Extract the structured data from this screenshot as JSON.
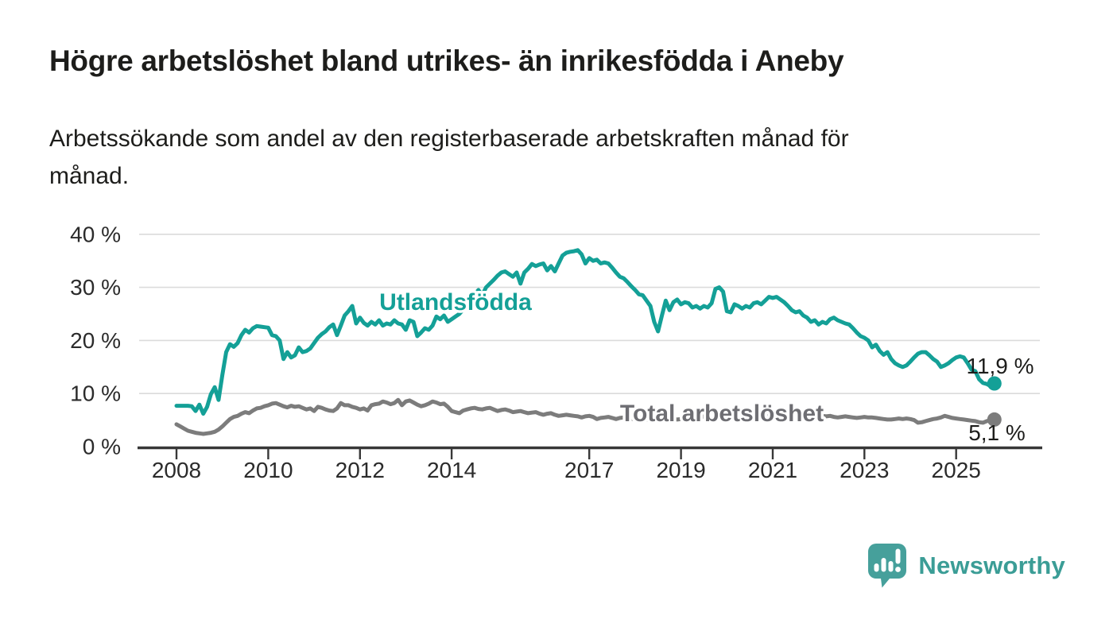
{
  "title": "Högre arbetslöshet bland utrikes- än inrikesfödda i Aneby",
  "subtitle": {
    "line1": "Arbetssökande som andel av den registerbaserade arbetskraften månad för",
    "line2": "månad."
  },
  "chart_data": {
    "type": "line",
    "x_unit": "month",
    "x_start": "2008-01",
    "x_end": "2025-11",
    "x_ticks": [
      2008,
      2010,
      2012,
      2014,
      2017,
      2019,
      2021,
      2023,
      2025
    ],
    "x_tick_labels": [
      "2008",
      "2010",
      "2012",
      "2014",
      "2017",
      "2019",
      "2021",
      "2023",
      "2025"
    ],
    "y_ticks": [
      0,
      10,
      20,
      30,
      40
    ],
    "y_tick_labels": [
      "0 %",
      "10 %",
      "20 %",
      "30 %",
      "40 %"
    ],
    "ylim": [
      0,
      42
    ],
    "grid": "horizontal",
    "legend_position": "inline-labels",
    "series": [
      {
        "name": "Utlandsfödda",
        "color": "#14a097",
        "label_color": "#14a097",
        "end_label": "11,9 %",
        "end_value": 11.9,
        "values": [
          7.7,
          7.7,
          7.7,
          7.7,
          7.6,
          6.7,
          7.9,
          6.2,
          7.5,
          9.9,
          11.2,
          8.8,
          13.5,
          17.8,
          19.3,
          18.8,
          19.5,
          21.0,
          22.0,
          21.5,
          22.3,
          22.7,
          22.6,
          22.5,
          22.4,
          21.0,
          20.8,
          20.0,
          16.5,
          17.8,
          16.8,
          17.2,
          18.7,
          17.8,
          18.0,
          18.5,
          19.5,
          20.5,
          21.2,
          21.7,
          22.5,
          23.0,
          21.0,
          22.8,
          24.7,
          25.5,
          26.5,
          23.2,
          24.3,
          23.3,
          22.8,
          23.5,
          23.0,
          23.8,
          22.8,
          23.2,
          23.0,
          23.8,
          23.2,
          23.0,
          22.0,
          23.8,
          23.5,
          20.8,
          21.5,
          22.3,
          22.0,
          22.8,
          24.5,
          24.0,
          24.7,
          23.5,
          24.0,
          24.5,
          25.0,
          25.8,
          26.5,
          27.6,
          28.7,
          29.5,
          28.5,
          30.0,
          30.7,
          31.4,
          32.2,
          32.8,
          33.0,
          32.5,
          32.0,
          32.8,
          30.7,
          32.8,
          33.5,
          34.4,
          34.0,
          34.3,
          34.5,
          33.2,
          34.0,
          33.0,
          34.5,
          36.0,
          36.5,
          36.7,
          36.8,
          37.0,
          36.2,
          34.5,
          35.5,
          35.0,
          35.2,
          34.5,
          34.7,
          34.5,
          33.7,
          32.8,
          32.0,
          31.7,
          31.0,
          30.2,
          29.5,
          28.7,
          28.5,
          27.5,
          26.5,
          23.5,
          21.7,
          24.7,
          27.5,
          25.7,
          27.2,
          27.7,
          26.8,
          27.2,
          27.0,
          26.2,
          26.5,
          26.0,
          26.5,
          26.2,
          27.0,
          29.7,
          30.0,
          29.2,
          25.5,
          25.3,
          26.8,
          26.5,
          26.0,
          26.5,
          26.2,
          27.0,
          27.2,
          26.8,
          27.5,
          28.2,
          28.0,
          28.2,
          27.7,
          27.2,
          26.5,
          25.7,
          25.3,
          25.5,
          24.7,
          24.3,
          23.5,
          23.8,
          23.0,
          23.5,
          23.2,
          24.0,
          24.3,
          23.8,
          23.5,
          23.2,
          23.0,
          22.3,
          21.5,
          20.8,
          20.5,
          20.0,
          18.7,
          19.2,
          18.0,
          17.3,
          17.8,
          16.5,
          15.7,
          15.3,
          15.0,
          15.3,
          16.0,
          16.8,
          17.5,
          17.8,
          17.8,
          17.2,
          16.5,
          16.0,
          15.0,
          15.3,
          15.7,
          16.3,
          16.8,
          17.0,
          16.8,
          15.7,
          14.5,
          14.2,
          12.7,
          12.0,
          11.8,
          11.4,
          11.9
        ]
      },
      {
        "name": "Total arbetslöshet",
        "color": "#7c7c7c",
        "label_color": "#6e6e73",
        "end_label": "5,1 %",
        "end_value": 5.1,
        "values": [
          4.2,
          3.8,
          3.4,
          3.0,
          2.8,
          2.6,
          2.5,
          2.4,
          2.5,
          2.6,
          2.8,
          3.2,
          3.8,
          4.5,
          5.2,
          5.6,
          5.8,
          6.2,
          6.5,
          6.3,
          6.8,
          7.2,
          7.3,
          7.6,
          7.8,
          8.1,
          8.2,
          7.9,
          7.6,
          7.4,
          7.7,
          7.5,
          7.6,
          7.3,
          7.0,
          7.2,
          6.7,
          7.5,
          7.3,
          7.0,
          6.8,
          6.7,
          7.2,
          8.2,
          7.8,
          7.8,
          7.5,
          7.3,
          7.0,
          7.2,
          6.8,
          7.8,
          8.0,
          8.1,
          8.5,
          8.3,
          8.0,
          8.2,
          8.8,
          7.8,
          8.5,
          8.7,
          8.3,
          7.9,
          7.6,
          7.8,
          8.1,
          8.5,
          8.3,
          8.0,
          8.1,
          7.5,
          6.7,
          6.5,
          6.3,
          6.8,
          7.0,
          7.2,
          7.3,
          7.1,
          7.0,
          7.2,
          7.3,
          7.0,
          6.7,
          6.9,
          7.0,
          6.8,
          6.5,
          6.6,
          6.7,
          6.5,
          6.3,
          6.4,
          6.5,
          6.2,
          6.0,
          6.2,
          6.3,
          6.0,
          5.8,
          5.9,
          6.0,
          5.9,
          5.8,
          5.7,
          5.5,
          5.7,
          5.8,
          5.6,
          5.2,
          5.4,
          5.5,
          5.6,
          5.4,
          5.2,
          5.4,
          5.5,
          5.3,
          5.2,
          5.3,
          5.5,
          5.3,
          5.1,
          5.0,
          4.9,
          5.0,
          5.2,
          5.4,
          5.3,
          5.2,
          5.1,
          5.2,
          5.4,
          5.3,
          5.2,
          5.4,
          5.5,
          5.7,
          5.6,
          5.8,
          6.0,
          6.1,
          6.0,
          5.9,
          6.0,
          6.2,
          6.5,
          6.7,
          6.8,
          6.7,
          6.5,
          6.4,
          6.3,
          6.2,
          6.1,
          6.2,
          6.3,
          6.2,
          6.0,
          5.9,
          5.8,
          5.9,
          6.0,
          5.9,
          5.8,
          5.7,
          5.8,
          5.9,
          5.8,
          5.7,
          5.8,
          5.6,
          5.5,
          5.6,
          5.7,
          5.6,
          5.5,
          5.4,
          5.5,
          5.6,
          5.5,
          5.5,
          5.4,
          5.3,
          5.2,
          5.1,
          5.1,
          5.2,
          5.3,
          5.2,
          5.3,
          5.2,
          5.0,
          4.5,
          4.6,
          4.8,
          5.0,
          5.2,
          5.3,
          5.5,
          5.8,
          5.6,
          5.4,
          5.3,
          5.2,
          5.1,
          5.0,
          4.9,
          4.8,
          4.6,
          4.5,
          4.8,
          5.0,
          5.1
        ]
      }
    ]
  },
  "logo": {
    "text": "Newsworthy",
    "icon": "speech-bubble-bar-chart-icon",
    "color": "#3b9d96",
    "icon_color": "#46a09b"
  }
}
